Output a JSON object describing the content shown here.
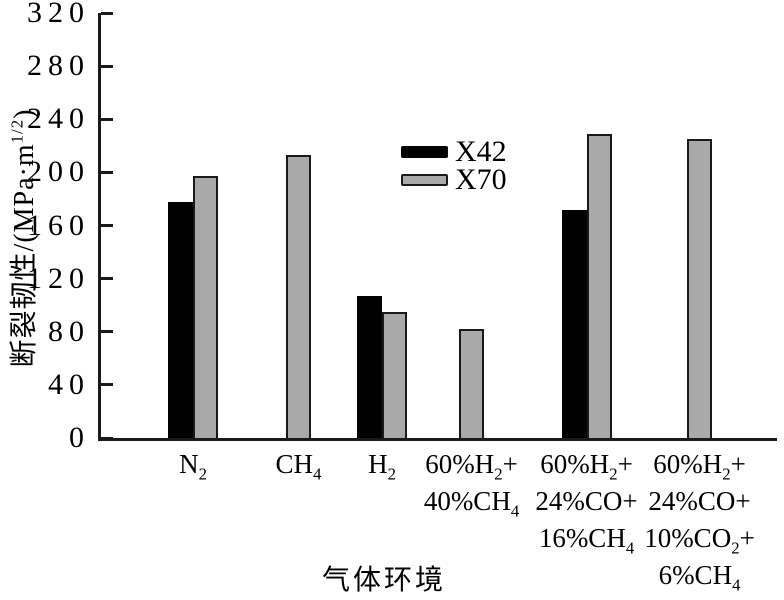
{
  "chart_data": {
    "type": "bar",
    "title": "",
    "xlabel": "气体环境",
    "ylabel": "断裂韧性/(MPa·m^{1/2})",
    "categories": [
      {
        "lines": [
          "N_2"
        ]
      },
      {
        "lines": [
          "CH_4"
        ]
      },
      {
        "lines": [
          "H_2"
        ]
      },
      {
        "lines": [
          "60%H_2+",
          "40%CH_4"
        ]
      },
      {
        "lines": [
          "60%H_2+",
          "24%CO+",
          "16%CH_4"
        ]
      },
      {
        "lines": [
          "60%H_2+",
          "24%CO+",
          "10%CO_2+",
          "6%CH_4"
        ]
      }
    ],
    "series": [
      {
        "name": "X42",
        "color": "#000000",
        "values": [
          178,
          null,
          107,
          null,
          172,
          null
        ]
      },
      {
        "name": "X70",
        "color": "#a9a9a9",
        "values": [
          197,
          213,
          95,
          82,
          229,
          225
        ]
      }
    ],
    "ylim": [
      0,
      320
    ],
    "ytick_step": 40,
    "yticks": [
      0,
      40,
      80,
      120,
      160,
      200,
      240,
      280,
      320
    ],
    "grid": false,
    "legend_position": "upper-middle",
    "bar_outline_color": "#1a1a1a",
    "axis_color": "#1a1a1a",
    "background_color": "#ffffff"
  }
}
